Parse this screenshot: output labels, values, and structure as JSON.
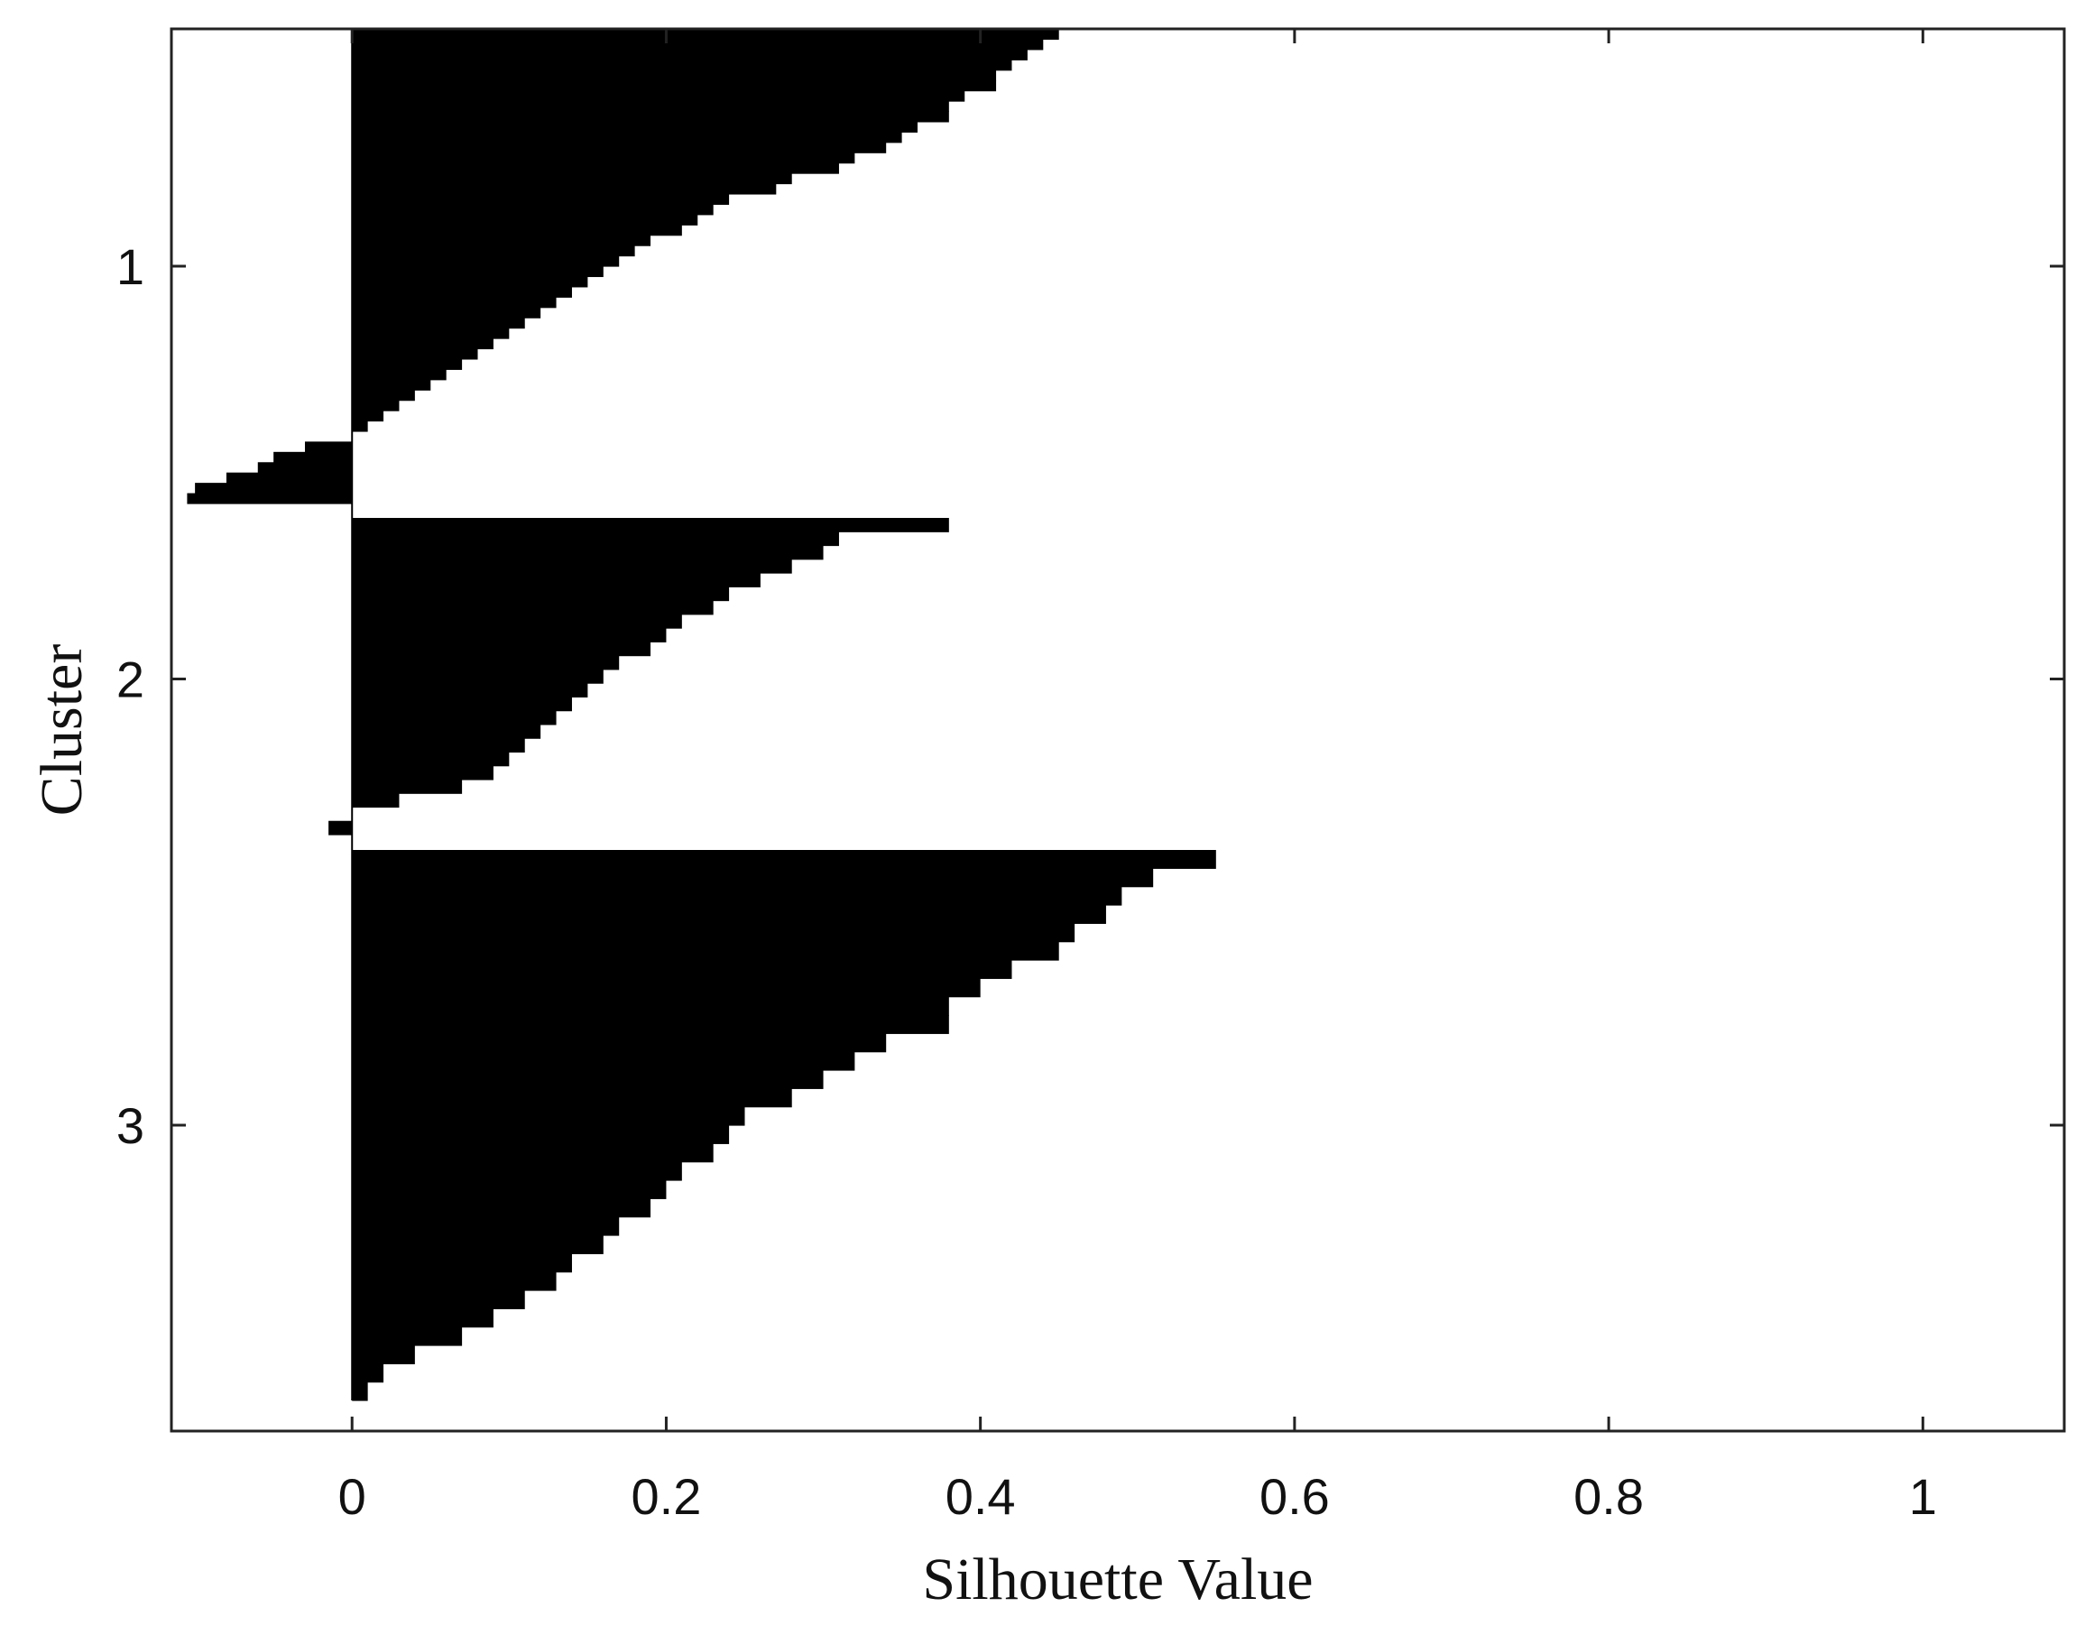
{
  "chart_data": {
    "type": "bar",
    "orientation": "horizontal",
    "title": "",
    "xlabel": "Silhouette Value",
    "ylabel": "Cluster",
    "xlim": [
      -0.115,
      1.09
    ],
    "x_ticks": [
      0,
      0.2,
      0.4,
      0.6,
      0.8,
      1
    ],
    "x_tick_labels": [
      "0",
      "0.2",
      "0.4",
      "0.6",
      "0.8",
      "1"
    ],
    "y_tick_labels": [
      "1",
      "2",
      "3"
    ],
    "grid": false,
    "bar_color": "#000000",
    "clusters": [
      {
        "label": "1",
        "values": [
          0.45,
          0.44,
          0.43,
          0.42,
          0.41,
          0.41,
          0.39,
          0.38,
          0.38,
          0.36,
          0.35,
          0.34,
          0.32,
          0.31,
          0.28,
          0.27,
          0.24,
          0.23,
          0.22,
          0.21,
          0.19,
          0.18,
          0.17,
          0.16,
          0.15,
          0.14,
          0.13,
          0.12,
          0.11,
          0.1,
          0.09,
          0.08,
          0.07,
          0.06,
          0.05,
          0.04,
          0.03,
          0.02,
          0.01,
          0.0,
          -0.03,
          -0.05,
          -0.06,
          -0.08,
          -0.1,
          -0.105
        ]
      },
      {
        "label": "2",
        "values": [
          0.38,
          0.31,
          0.3,
          0.28,
          0.26,
          0.24,
          0.23,
          0.21,
          0.2,
          0.19,
          0.17,
          0.16,
          0.15,
          0.14,
          0.13,
          0.12,
          0.11,
          0.1,
          0.09,
          0.07,
          0.03,
          0.0,
          -0.015
        ]
      },
      {
        "label": "3",
        "values": [
          0.55,
          0.51,
          0.49,
          0.48,
          0.46,
          0.45,
          0.42,
          0.4,
          0.38,
          0.38,
          0.34,
          0.32,
          0.3,
          0.28,
          0.25,
          0.24,
          0.23,
          0.21,
          0.2,
          0.19,
          0.17,
          0.16,
          0.14,
          0.13,
          0.11,
          0.09,
          0.07,
          0.04,
          0.02,
          0.01
        ]
      }
    ]
  }
}
